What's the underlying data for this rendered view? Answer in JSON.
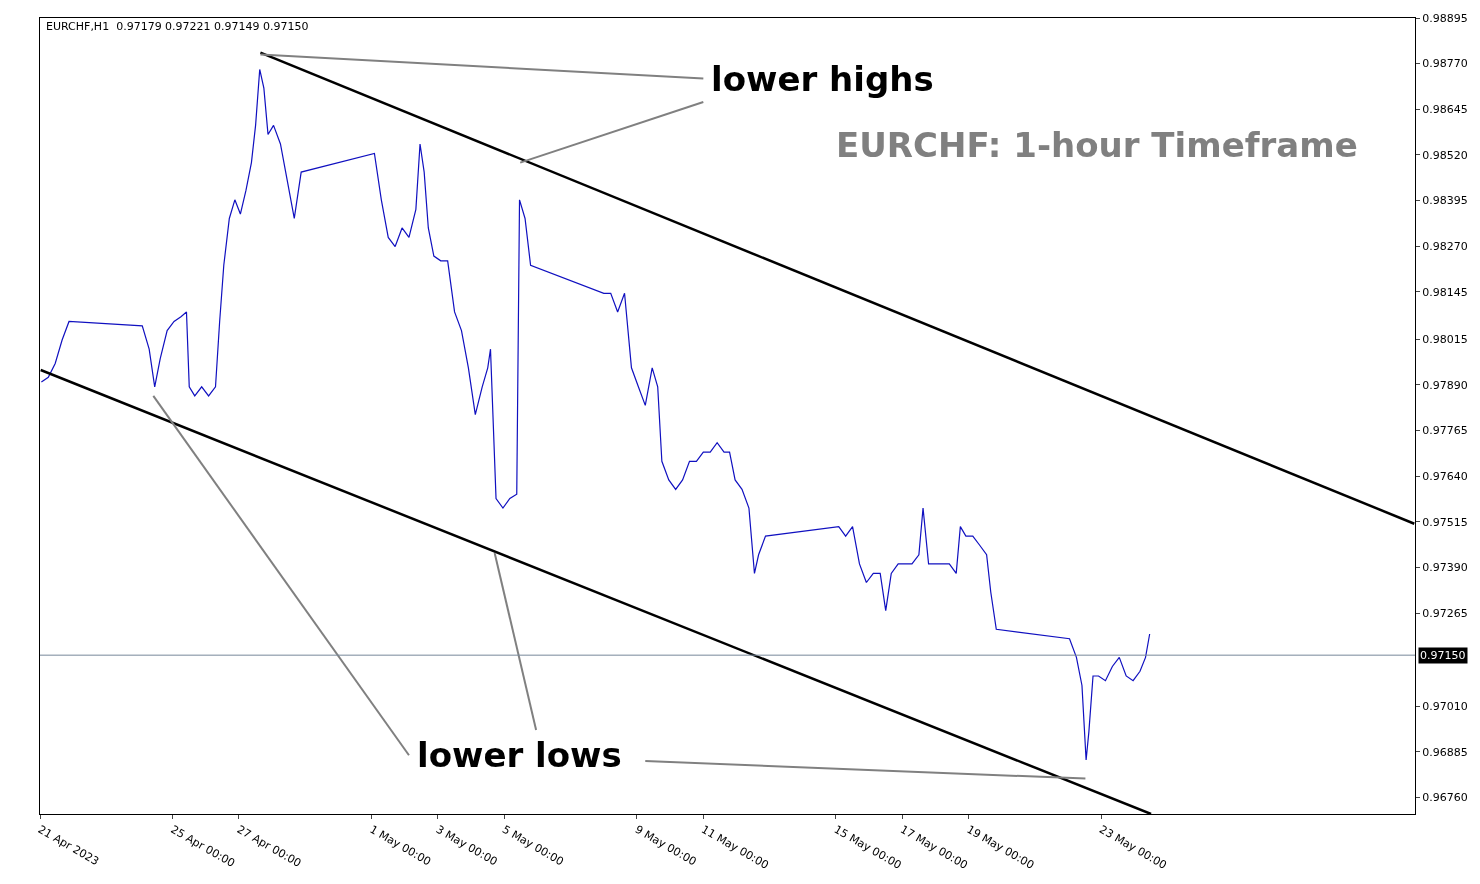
{
  "chart_data": {
    "type": "line",
    "title": "EURCHF,H1  0.97179 0.97221 0.97149 0.97150",
    "subtitle": "EURCHF: 1-hour Timeframe",
    "annotations": [
      "lower highs",
      "lower lows"
    ],
    "series": [
      {
        "color": "#1010c0",
        "x": [
          "2023-04-21T01:00",
          "2023-04-21T06:00",
          "2023-04-21T11:00",
          "2023-04-21T16:00",
          "2023-04-21T21:00",
          "2023-04-24T02:00",
          "2023-04-24T07:00",
          "2023-04-24T11:00",
          "2023-04-24T15:00",
          "2023-04-24T20:00",
          "2023-04-25T01:00",
          "2023-04-25T06:00",
          "2023-04-25T10:00",
          "2023-04-25T12:00",
          "2023-04-25T16:00",
          "2023-04-25T21:00",
          "2023-04-26T02:00",
          "2023-04-26T07:00",
          "2023-04-26T10:00",
          "2023-04-26T13:00",
          "2023-04-26T17:00",
          "2023-04-26T21:00",
          "2023-04-27T01:00",
          "2023-04-27T05:00",
          "2023-04-27T09:00",
          "2023-04-27T12:00",
          "2023-04-27T15:00",
          "2023-04-27T18:00",
          "2023-04-27T21:00",
          "2023-04-28T01:00",
          "2023-04-28T06:00",
          "2023-04-28T11:00",
          "2023-04-28T16:00",
          "2023-04-28T21:00",
          "2023-05-01T02:00",
          "2023-05-01T07:00",
          "2023-05-01T12:00",
          "2023-05-01T17:00",
          "2023-05-01T22:00",
          "2023-05-02T03:00",
          "2023-05-02T08:00",
          "2023-05-02T11:00",
          "2023-05-02T14:00",
          "2023-05-02T17:00",
          "2023-05-02T21:00",
          "2023-05-03T02:00",
          "2023-05-03T07:00",
          "2023-05-03T12:00",
          "2023-05-03T17:00",
          "2023-05-03T22:00",
          "2023-05-04T03:00",
          "2023-05-04T08:00",
          "2023-05-04T12:00",
          "2023-05-04T14:00",
          "2023-05-04T18:00",
          "2023-05-04T23:00",
          "2023-05-05T04:00",
          "2023-05-05T09:00",
          "2023-05-05T11:00",
          "2023-05-05T15:00",
          "2023-05-05T19:00",
          "2023-05-08T00:00",
          "2023-05-08T05:00",
          "2023-05-08T10:00",
          "2023-05-08T15:00",
          "2023-05-08T20:00",
          "2023-05-09T01:00",
          "2023-05-09T06:00",
          "2023-05-09T11:00",
          "2023-05-09T15:00",
          "2023-05-09T18:00",
          "2023-05-09T23:00",
          "2023-05-10T04:00",
          "2023-05-10T09:00",
          "2023-05-10T14:00",
          "2023-05-10T19:00",
          "2023-05-11T00:00",
          "2023-05-11T05:00",
          "2023-05-11T10:00",
          "2023-05-11T15:00",
          "2023-05-11T19:00",
          "2023-05-11T23:00",
          "2023-05-12T04:00",
          "2023-05-12T09:00",
          "2023-05-12T13:00",
          "2023-05-12T16:00",
          "2023-05-12T21:00",
          "2023-05-15T02:00",
          "2023-05-15T07:00",
          "2023-05-15T12:00",
          "2023-05-15T17:00",
          "2023-05-15T22:00",
          "2023-05-16T03:00",
          "2023-05-16T08:00",
          "2023-05-16T12:00",
          "2023-05-16T16:00",
          "2023-05-16T21:00",
          "2023-05-17T02:00",
          "2023-05-17T07:00",
          "2023-05-17T12:00",
          "2023-05-17T15:00",
          "2023-05-17T19:00",
          "2023-05-18T00:00",
          "2023-05-18T05:00",
          "2023-05-18T10:00",
          "2023-05-18T15:00",
          "2023-05-18T18:00",
          "2023-05-18T22:00",
          "2023-05-19T03:00",
          "2023-05-19T08:00",
          "2023-05-19T13:00",
          "2023-05-19T16:00",
          "2023-05-19T20:00",
          "2023-05-22T01:00",
          "2023-05-22T06:00",
          "2023-05-22T10:00",
          "2023-05-22T13:00",
          "2023-05-22T15:00",
          "2023-05-22T18:00",
          "2023-05-22T22:00",
          "2023-05-23T03:00",
          "2023-05-23T08:00",
          "2023-05-23T13:00",
          "2023-05-23T18:00",
          "2023-05-23T23:00",
          "2023-05-24T04:00",
          "2023-05-24T08:00",
          "2023-05-24T11:00"
        ],
        "values": [
          0.97898,
          0.97911,
          0.97949,
          0.98013,
          0.98064,
          0.98052,
          0.97988,
          0.97885,
          0.97962,
          0.98039,
          0.98064,
          0.98077,
          0.9809,
          0.97885,
          0.9786,
          0.97885,
          0.9786,
          0.97885,
          0.98064,
          0.98218,
          0.98346,
          0.98397,
          0.98358,
          0.98422,
          0.98499,
          0.98601,
          0.98754,
          0.98703,
          0.98576,
          0.98601,
          0.9855,
          0.98448,
          0.98346,
          0.98473,
          0.98524,
          0.98397,
          0.98294,
          0.98269,
          0.9832,
          0.98294,
          0.98371,
          0.9855,
          0.98473,
          0.9832,
          0.98243,
          0.9823,
          0.9823,
          0.9809,
          0.98039,
          0.97937,
          0.97809,
          0.97885,
          0.97937,
          0.97988,
          0.97579,
          0.97553,
          0.97579,
          0.97591,
          0.98397,
          0.98346,
          0.98218,
          0.98141,
          0.98141,
          0.9809,
          0.98141,
          0.97937,
          0.97885,
          0.97834,
          0.97937,
          0.97885,
          0.97681,
          0.9763,
          0.97604,
          0.9763,
          0.97681,
          0.97681,
          0.97706,
          0.97706,
          0.97732,
          0.97706,
          0.97706,
          0.9763,
          0.97604,
          0.97553,
          0.97374,
          0.97425,
          0.97476,
          0.97502,
          0.97476,
          0.97502,
          0.974,
          0.97349,
          0.97374,
          0.97374,
          0.97272,
          0.97374,
          0.974,
          0.974,
          0.974,
          0.97425,
          0.97553,
          0.974,
          0.974,
          0.974,
          0.974,
          0.97374,
          0.97502,
          0.97476,
          0.97476,
          0.97451,
          0.97425,
          0.97323,
          0.97221,
          0.97195,
          0.97144,
          0.97067,
          0.96863,
          0.9694,
          0.97093,
          0.97093,
          0.9708,
          0.97119,
          0.97144,
          0.97093,
          0.9708,
          0.97106,
          0.97144,
          0.97208
        ]
      },
      {
        "color": "#000000",
        "x": [
          "2023-04-27T15:30",
          "2023-06-01T10:30"
        ],
        "values": [
          0.988,
          0.9751
        ]
      },
      {
        "color": "#000000",
        "x": [
          "2023-04-21T00:30",
          "2023-05-24T12:00"
        ],
        "values": [
          0.97931,
          0.96715
        ]
      },
      {
        "color": "#808080",
        "x": [
          "2023-04-27T15:30",
          "2023-05-11T00:00"
        ],
        "values": [
          0.98795,
          0.98729
        ]
      },
      {
        "color": "#808080",
        "x": [
          "2023-05-05T11:30",
          "2023-05-11T00:00"
        ],
        "values": [
          0.98499,
          0.98665
        ]
      },
      {
        "color": "#808080",
        "x": [
          "2023-04-24T10:00",
          "2023-05-02T03:00"
        ],
        "values": [
          0.9786,
          0.96876
        ]
      },
      {
        "color": "#808080",
        "x": [
          "2023-05-04T17:00",
          "2023-05-05T23:00"
        ],
        "values": [
          0.9743,
          0.96945
        ]
      },
      {
        "color": "#808080",
        "x": [
          "2023-05-22T12:30",
          "2023-05-09T06:00"
        ],
        "values": [
          0.96812,
          0.9686
        ]
      }
    ],
    "xlim": [
      "2023-04-21",
      "2023-06-01T11:00"
    ],
    "xticks": [
      {
        "value": "2023-04-21",
        "label": "21 Apr 2023"
      },
      {
        "value": "2023-04-25",
        "label": "25 Apr 00:00"
      },
      {
        "value": "2023-04-27",
        "label": "27 Apr 00:00"
      },
      {
        "value": "2023-05-01",
        "label": "1 May 00:00"
      },
      {
        "value": "2023-05-03",
        "label": "3 May 00:00"
      },
      {
        "value": "2023-05-05",
        "label": "5 May 00:00"
      },
      {
        "value": "2023-05-09",
        "label": "9 May 00:00"
      },
      {
        "value": "2023-05-11",
        "label": "11 May 00:00"
      },
      {
        "value": "2023-05-15",
        "label": "15 May 00:00"
      },
      {
        "value": "2023-05-17",
        "label": "17 May 00:00"
      },
      {
        "value": "2023-05-19",
        "label": "19 May 00:00"
      },
      {
        "value": "2023-05-23",
        "label": "23 May 00:00"
      }
    ],
    "ylim": [
      0.96715,
      0.98895
    ],
    "yticks": [
      {
        "value": 0.98895,
        "label": "0.98895"
      },
      {
        "value": 0.9877,
        "label": "0.98770"
      },
      {
        "value": 0.98645,
        "label": "0.98645"
      },
      {
        "value": 0.9852,
        "label": "0.98520"
      },
      {
        "value": 0.98395,
        "label": "0.98395"
      },
      {
        "value": 0.9827,
        "label": "0.98270"
      },
      {
        "value": 0.98145,
        "label": "0.98145"
      },
      {
        "value": 0.98015,
        "label": "0.98015"
      },
      {
        "value": 0.9789,
        "label": "0.97890"
      },
      {
        "value": 0.97765,
        "label": "0.97765"
      },
      {
        "value": 0.9764,
        "label": "0.97640"
      },
      {
        "value": 0.97515,
        "label": "0.97515"
      },
      {
        "value": 0.9739,
        "label": "0.97390"
      },
      {
        "value": 0.97265,
        "label": "0.97265"
      },
      {
        "value": 0.9701,
        "label": "0.97010"
      },
      {
        "value": 0.96885,
        "label": "0.96885"
      },
      {
        "value": 0.9676,
        "label": "0.96760"
      }
    ],
    "ref_lines": [
      {
        "axis": "y",
        "value": 0.9715,
        "label": "0.97150",
        "color": "#778899"
      }
    ],
    "marker": "none",
    "line_style": "solid"
  }
}
